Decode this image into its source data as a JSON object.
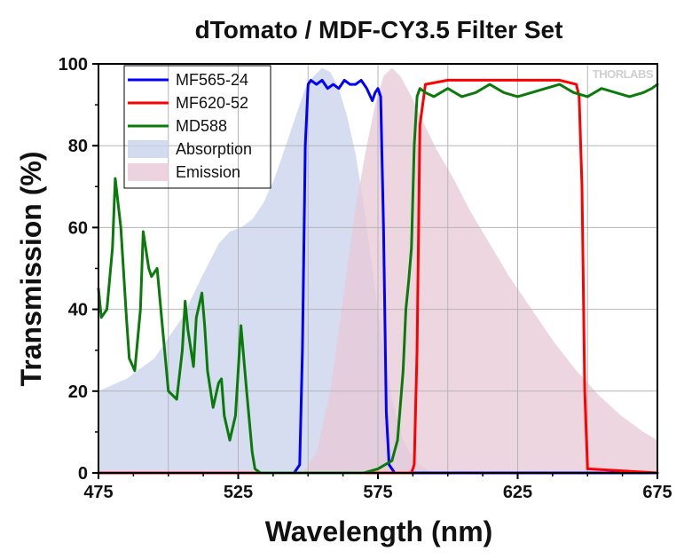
{
  "chart_data": {
    "type": "line",
    "title": "dTomato / MDF-CY3.5 Filter Set",
    "xlabel": "Wavelength (nm)",
    "ylabel": "Transmission (%)",
    "xlim": [
      475,
      675
    ],
    "ylim": [
      0,
      100
    ],
    "xticks": [
      475,
      525,
      575,
      625,
      675
    ],
    "yticks": [
      0,
      20,
      40,
      60,
      80,
      100
    ],
    "grid": true,
    "legend_position": "top-left",
    "logo": "THORLABS",
    "series": [
      {
        "name": "MF565-24",
        "kind": "line",
        "color": "#0000ff",
        "x": [
          475,
          545,
          547,
          548,
          549,
          550,
          551,
          553,
          555,
          557,
          559,
          561,
          563,
          565,
          567,
          569,
          571,
          573,
          574,
          575,
          576,
          577,
          578,
          579,
          581,
          675
        ],
        "y": [
          0,
          0,
          2,
          30,
          80,
          95,
          96,
          95,
          96,
          94,
          95,
          94,
          96,
          95,
          95,
          96,
          94,
          91,
          93,
          94,
          92,
          60,
          15,
          2,
          0,
          0
        ]
      },
      {
        "name": "MF620-52",
        "kind": "line",
        "color": "#ff0000",
        "x": [
          475,
          587,
          588,
          589,
          590,
          592,
          600,
          610,
          620,
          630,
          640,
          646,
          647,
          648,
          649,
          650,
          675
        ],
        "y": [
          0,
          0,
          2,
          30,
          85,
          95,
          96,
          96,
          96,
          96,
          96,
          95,
          92,
          70,
          20,
          1,
          0
        ]
      },
      {
        "name": "MD588",
        "kind": "line",
        "color": "#0a7a0a",
        "x": [
          475,
          476,
          478,
          480,
          481,
          483,
          485,
          486,
          488,
          490,
          491,
          493,
          494,
          496,
          498,
          500,
          503,
          505,
          506,
          507,
          509,
          510,
          512,
          513,
          514,
          516,
          518,
          519,
          520,
          522,
          524,
          526,
          528,
          530,
          531,
          533,
          536,
          540,
          550,
          560,
          570,
          575,
          580,
          582,
          584,
          585,
          586,
          587,
          588,
          589,
          590,
          592,
          595,
          600,
          605,
          610,
          615,
          620,
          625,
          630,
          635,
          640,
          645,
          650,
          655,
          660,
          665,
          670,
          673,
          675
        ],
        "y": [
          45,
          38,
          40,
          55,
          72,
          60,
          38,
          28,
          25,
          40,
          59,
          50,
          48,
          50,
          35,
          20,
          18,
          30,
          42,
          35,
          26,
          38,
          44,
          36,
          25,
          16,
          22,
          23,
          14,
          8,
          14,
          36,
          20,
          5,
          1,
          0,
          0,
          0,
          0,
          0,
          0,
          1,
          3,
          8,
          25,
          40,
          47,
          55,
          80,
          92,
          94,
          93,
          92,
          94,
          92,
          93,
          95,
          93,
          92,
          93,
          94,
          95,
          93,
          92,
          94,
          93,
          92,
          93,
          94,
          95
        ]
      },
      {
        "name": "Absorption",
        "kind": "area",
        "color": "#c8d2ec",
        "x": [
          475,
          485,
          495,
          505,
          512,
          518,
          522,
          526,
          530,
          534,
          538,
          542,
          546,
          549,
          552,
          555,
          558,
          561,
          564,
          567,
          570,
          573,
          575,
          577,
          580,
          584,
          588,
          592,
          595
        ],
        "y": [
          20,
          23,
          28,
          38,
          48,
          56,
          59,
          60,
          62,
          66,
          72,
          80,
          88,
          94,
          97,
          99,
          98,
          94,
          87,
          78,
          65,
          50,
          40,
          30,
          18,
          8,
          3,
          1,
          0
        ]
      },
      {
        "name": "Emission",
        "kind": "area",
        "color": "#e8c8d6",
        "x": [
          548,
          553,
          558,
          563,
          567,
          571,
          574,
          577,
          580,
          583,
          587,
          591,
          596,
          602,
          608,
          615,
          622,
          630,
          638,
          646,
          654,
          662,
          670,
          675
        ],
        "y": [
          0,
          5,
          20,
          45,
          65,
          80,
          90,
          97,
          99,
          97,
          92,
          86,
          79,
          72,
          64,
          56,
          48,
          40,
          32,
          25,
          19,
          14,
          10,
          8
        ]
      }
    ]
  }
}
